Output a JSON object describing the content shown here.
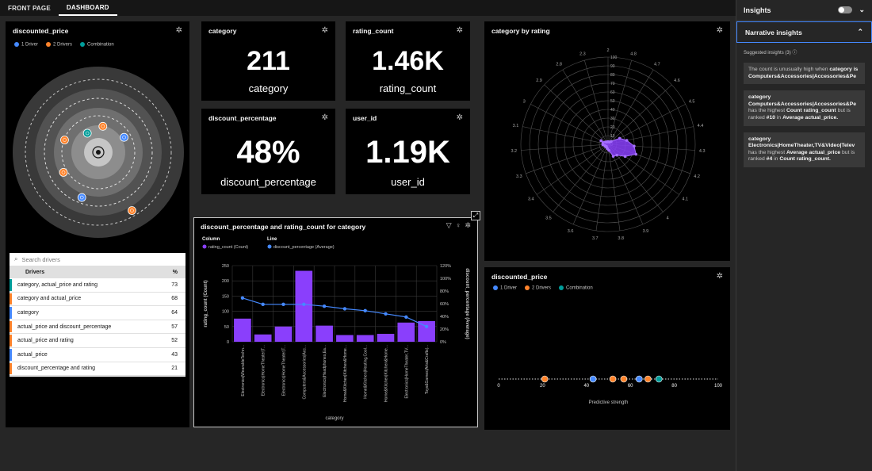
{
  "tabs": [
    {
      "label": "FRONT PAGE"
    },
    {
      "label": "DASHBOARD"
    }
  ],
  "cards": {
    "discounted_price_top": {
      "title": "discounted_price"
    },
    "category_kpi": {
      "title": "category",
      "value": "211",
      "label": "category"
    },
    "rating_count_kpi": {
      "title": "rating_count",
      "value": "1.46K",
      "label": "rating_count"
    },
    "discount_percentage_kpi": {
      "title": "discount_percentage",
      "value": "48%",
      "label": "discount_percentage"
    },
    "user_id_kpi": {
      "title": "user_id",
      "value": "1.19K",
      "label": "user_id"
    },
    "combo_chart": {
      "title": "discount_percentage and rating_count for category"
    },
    "radar": {
      "title": "category by rating"
    },
    "discounted_price_bottom": {
      "title": "discounted_price"
    }
  },
  "legend": {
    "driver1": "1 Driver",
    "driver2": "2 Drivers",
    "combination": "Combination"
  },
  "colors": {
    "driver1": "#4589ff",
    "driver2": "#ff832b",
    "combination": "#009d9a",
    "bar": "#8a3ffc",
    "line": "#4589ff",
    "accent": "#4589ff"
  },
  "drivers": {
    "search_placeholder": "Search drivers",
    "col_name": "Drivers",
    "col_pct": "%",
    "rows": [
      {
        "name": "category, actual_price and rating",
        "pct": "73",
        "type": "combination"
      },
      {
        "name": "category and actual_price",
        "pct": "68",
        "type": "driver2"
      },
      {
        "name": "category",
        "pct": "64",
        "type": "driver1"
      },
      {
        "name": "actual_price and discount_percentage",
        "pct": "57",
        "type": "driver2"
      },
      {
        "name": "actual_price and rating",
        "pct": "52",
        "type": "driver2"
      },
      {
        "name": "actual_price",
        "pct": "43",
        "type": "driver1"
      },
      {
        "name": "discount_percentage and rating",
        "pct": "21",
        "type": "driver2"
      }
    ]
  },
  "chart_data": [
    {
      "type": "bar",
      "title": "discount_percentage and rating_count for category",
      "legend_column_title": "Column",
      "legend_line_title": "Line",
      "column_series_name": "rating_count (Count)",
      "line_series_name": "discount_percentage (Average)",
      "xlabel": "category",
      "ylabel": "rating_count (Count)",
      "y2label": "discount_percentage (Average)",
      "ylim": [
        0,
        250
      ],
      "yticks": [
        "0",
        "50",
        "100",
        "150",
        "200",
        "250"
      ],
      "y2lim": [
        0,
        120
      ],
      "y2ticks": [
        "0%",
        "20%",
        "40%",
        "60%",
        "80%",
        "100%",
        "120%"
      ],
      "categories": [
        "Electronics|WearableTechn...",
        "Electronics|HomeTheater|T...",
        "Electronics|HomeTheater|T...",
        "Computers&Accessories|Acc...",
        "Electronics|Headphones,Ea...",
        "Home&Kitchen|Kitchen&Home...",
        "Home&Kitchen|Heating,Cool...",
        "Home&Kitchen|Kitchen&Home...",
        "Electronics|HomeTheater,TV...",
        "Toys&Games|Arts&Crafts|..."
      ],
      "series": [
        {
          "name": "rating_count (Count)",
          "kind": "bar",
          "values": [
            76,
            24,
            50,
            233,
            53,
            22,
            22,
            26,
            63,
            68
          ]
        },
        {
          "name": "discount_percentage (Average)",
          "kind": "line",
          "values": [
            69,
            59,
            59,
            59,
            56,
            52,
            49,
            44,
            39,
            24
          ]
        }
      ]
    },
    {
      "type": "radar",
      "title": "category by rating",
      "axis_labels": [
        "2",
        "4.8",
        "4.7",
        "4.6",
        "4.5",
        "4.4",
        "4.3",
        "4.2",
        "4.1",
        "4",
        "3.9",
        "3.8",
        "3.7",
        "3.6",
        "3.5",
        "3.4",
        "3.3",
        "3.2",
        "3.1",
        "3",
        "2.9",
        "2.8",
        "2.3"
      ],
      "radial_ticks": [
        "0",
        "10",
        "20",
        "30",
        "40",
        "50",
        "60",
        "70",
        "80",
        "90",
        "100"
      ],
      "rlim": [
        0,
        100
      ],
      "values": [
        3,
        3,
        3,
        5,
        15,
        22,
        30,
        34,
        24,
        16,
        15,
        7,
        5,
        4,
        3,
        4,
        4,
        6,
        6,
        9,
        4,
        3,
        3
      ],
      "color": "#8a3ffc"
    },
    {
      "type": "scatter",
      "title": "discounted_price",
      "xlabel": "Predictive strength",
      "xlim": [
        0,
        100
      ],
      "xticks": [
        "0",
        "20",
        "40",
        "60",
        "80",
        "100"
      ],
      "points": [
        {
          "x": 21,
          "type": "driver2"
        },
        {
          "x": 43,
          "type": "driver1"
        },
        {
          "x": 52,
          "type": "driver2"
        },
        {
          "x": 57,
          "type": "driver2"
        },
        {
          "x": 64,
          "type": "driver1"
        },
        {
          "x": 68,
          "type": "driver2"
        },
        {
          "x": 73,
          "type": "combination"
        }
      ]
    },
    {
      "type": "scatter",
      "title": "discounted_price",
      "layout": "concentric-rings",
      "points": [
        {
          "strength": 73,
          "type": "combination"
        },
        {
          "strength": 68,
          "type": "driver2"
        },
        {
          "strength": 64,
          "type": "driver1"
        },
        {
          "strength": 57,
          "type": "driver2"
        },
        {
          "strength": 52,
          "type": "driver2"
        },
        {
          "strength": 43,
          "type": "driver1"
        },
        {
          "strength": 21,
          "type": "driver2"
        }
      ]
    }
  ],
  "insights_panel": {
    "title": "Insights",
    "narrative_title": "Narrative insights",
    "suggested": "Suggested insights (3)",
    "items": [
      {
        "pre": "The count is unusually high when ",
        "bold": "category is Computers&Accessories|Accessories&Pe",
        "post": ""
      },
      {
        "pre": "",
        "bold": "category Computers&Accessories|Accessories&Pe",
        "post": " has the highest ",
        "bold2": "Count rating_count",
        "post2": " but is ranked ",
        "bold3": "#10",
        "post3": " in ",
        "bold4": "Average actual_price."
      },
      {
        "pre": "",
        "bold": "category Electronics|HomeTheater,TV&Video|Telev",
        "post": " has the highest ",
        "bold2": "Average actual_price",
        "post2": " but is ranked ",
        "bold3": "#4",
        "post3": " in ",
        "bold4": "Count rating_count."
      }
    ]
  }
}
